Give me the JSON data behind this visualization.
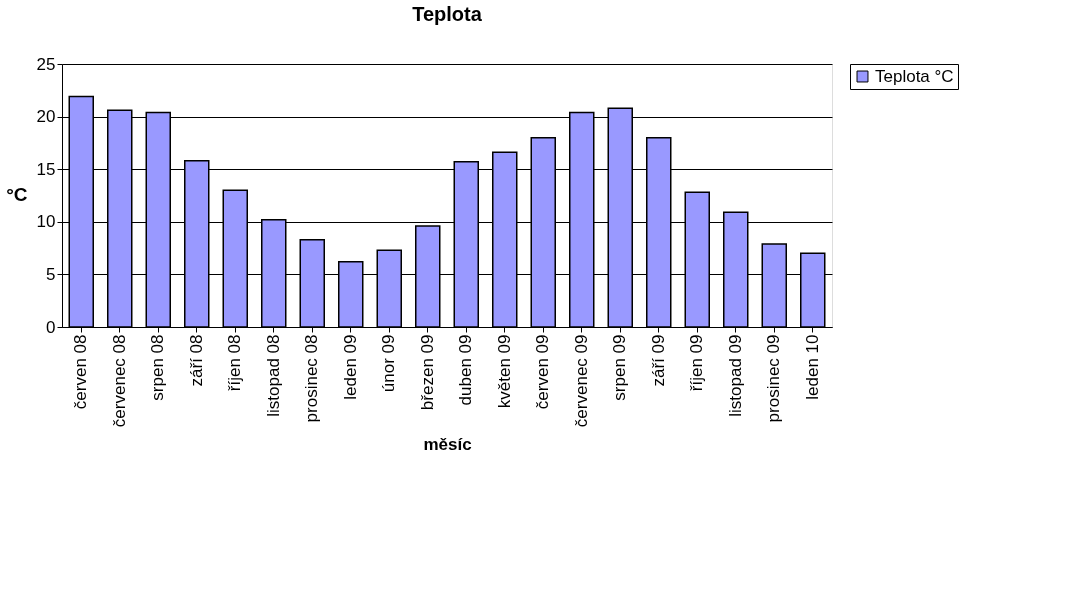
{
  "chart_data": {
    "type": "bar",
    "title": "Teplota",
    "xlabel": "měsíc",
    "ylabel": "°C",
    "categories": [
      "červen 08",
      "červenec 08",
      "srpen 08",
      "září 08",
      "říjen 08",
      "listopad 08",
      "prosinec 08",
      "leden 09",
      "únor 09",
      "březen 09",
      "duben 09",
      "květen 09",
      "červen 09",
      "červenec 09",
      "srpen 09",
      "září 09",
      "říjen 09",
      "listopad 09",
      "prosinec 09",
      "leden 10"
    ],
    "series": [
      {
        "name": "Teplota °C",
        "color": "#9999ff",
        "values": [
          21.9,
          20.6,
          20.4,
          15.8,
          13.0,
          10.2,
          8.3,
          6.2,
          7.3,
          9.6,
          15.7,
          16.6,
          18.0,
          20.4,
          20.8,
          18.0,
          12.8,
          10.9,
          7.9,
          7.0
        ]
      }
    ],
    "ylim": [
      0,
      25
    ],
    "yticks": [
      0,
      5,
      10,
      15,
      20,
      25
    ],
    "grid": "y",
    "legend": "right"
  }
}
